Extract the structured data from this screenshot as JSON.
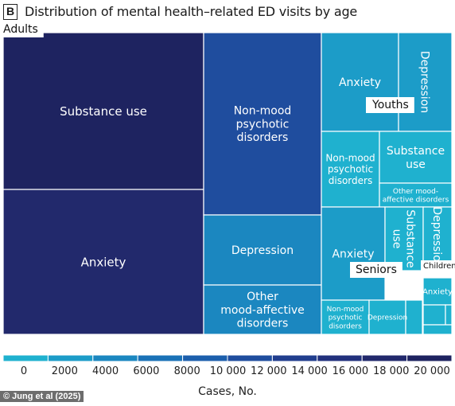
{
  "panel_label": "B",
  "title": "Distribution of mental health–related ED visits by age",
  "credit": "© Jung et al (2025)",
  "colors": {
    "scale": [
      "#1fb1cf",
      "#1c9cc8",
      "#1b87c0",
      "#1a72b7",
      "#1c5fac",
      "#1f4d9e",
      "#213e8e",
      "#22317d",
      "#22296c",
      "#1e2360"
    ],
    "border": "#ffffff",
    "label_box": "#ffffff"
  },
  "chart_data": {
    "type": "treemap",
    "title": "Distribution of mental health–related ED visits by age",
    "value_label": "Cases, No.",
    "color_scale": {
      "min": 0,
      "max": 20000,
      "ticks": [
        0,
        2000,
        4000,
        6000,
        8000,
        10000,
        12000,
        14000,
        16000,
        18000,
        20000
      ],
      "tick_labels": [
        "0",
        "2000",
        "4000",
        "6000",
        "8000",
        "10 000",
        "12 000",
        "14 000",
        "16 000",
        "18 000",
        "20 000"
      ]
    },
    "groups": [
      {
        "name": "Adults",
        "children": [
          {
            "name": "Substance use",
            "value": 19500
          },
          {
            "name": "Anxiety",
            "value": 16800
          },
          {
            "name": "Non-mood psychotic disorders",
            "value": 11300
          },
          {
            "name": "Depression",
            "value": 5600
          },
          {
            "name": "Other mood-affective disorders",
            "value": 4000
          }
        ]
      },
      {
        "name": "Youths",
        "children": [
          {
            "name": "Anxiety",
            "value": 3000
          },
          {
            "name": "Depression",
            "value": 2100
          },
          {
            "name": "Non-mood psychotic disorders",
            "value": 1800
          },
          {
            "name": "Substance use",
            "value": 1700
          },
          {
            "name": "Other mood-affective disorders",
            "value": 800
          }
        ]
      },
      {
        "name": "Seniors",
        "children": [
          {
            "name": "Anxiety",
            "value": 2400
          },
          {
            "name": "Substance use",
            "value": 1100
          },
          {
            "name": "Non-mood psychotic disorders",
            "value": 700
          },
          {
            "name": "Depression",
            "value": 500
          },
          {
            "name": "",
            "value": 200
          }
        ]
      },
      {
        "name": "Children",
        "children": [
          {
            "name": "Depression",
            "value": 900
          },
          {
            "name": "Anxiety",
            "value": 600
          },
          {
            "name": "",
            "value": 150
          },
          {
            "name": "",
            "value": 80
          },
          {
            "name": "",
            "value": 60
          }
        ]
      }
    ]
  }
}
